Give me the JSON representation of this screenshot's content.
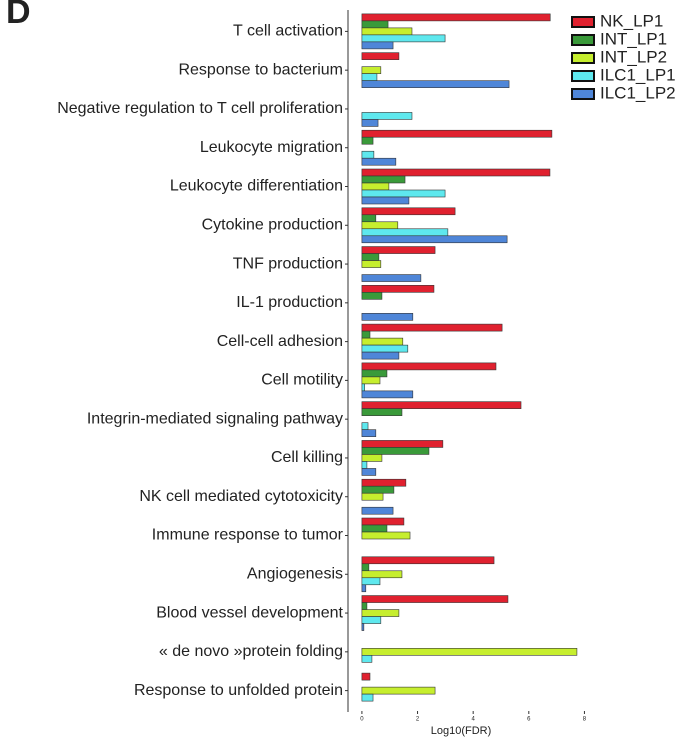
{
  "chart_data": {
    "type": "bar",
    "orientation": "horizontal",
    "panel_label": "D",
    "x_label": "Log10(FDR)",
    "categories": [
      "T cell activation",
      "Response to bacterium",
      "Negative regulation to T cell proliferation",
      "Leukocyte migration",
      "Leukocyte differentiation",
      "Cytokine production",
      "TNF production",
      "IL-1 production",
      "Cell-cell adhesion",
      "Cell motility",
      "Integrin-mediated signaling pathway",
      "Cell killing",
      "NK cell mediated cytotoxicity",
      "Immune response to tumor",
      "Angiogenesis",
      "Blood vessel development",
      "« de novo »protein folding",
      "Response to unfolded protein"
    ],
    "series": [
      {
        "name": "NK_LP1",
        "color": "#e0212f",
        "values": [
          6.77,
          1.33,
          0,
          6.83,
          6.76,
          3.35,
          2.63,
          2.59,
          5.04,
          4.82,
          5.72,
          2.91,
          1.58,
          1.51,
          4.75,
          5.25,
          0,
          0.29
        ]
      },
      {
        "name": "INT_LP1",
        "color": "#3a9a3a",
        "values": [
          0.94,
          0,
          0,
          0.4,
          1.55,
          0.5,
          0.61,
          0.72,
          0.29,
          0.9,
          1.44,
          2.41,
          1.15,
          0.9,
          0.25,
          0.18,
          0,
          0
        ]
      },
      {
        "name": "INT_LP2",
        "color": "#c6ee2e",
        "values": [
          1.8,
          0.68,
          0,
          0,
          0.97,
          1.29,
          0.68,
          0,
          1.47,
          0.65,
          0,
          0.72,
          0.76,
          1.73,
          1.44,
          1.33,
          7.73,
          2.63
        ]
      },
      {
        "name": "ILC1_LP1",
        "color": "#5ee8ee",
        "values": [
          2.99,
          0.54,
          1.8,
          0.43,
          2.99,
          3.09,
          0,
          0,
          1.65,
          0.1,
          0.22,
          0.18,
          0,
          0,
          0.65,
          0.68,
          0.36,
          0.4
        ]
      },
      {
        "name": "ILC1_LP2",
        "color": "#4f86d8",
        "values": [
          1.12,
          5.29,
          0.58,
          1.22,
          1.69,
          5.22,
          2.12,
          1.83,
          1.33,
          1.83,
          0.5,
          0.5,
          1.12,
          0,
          0.14,
          0.07,
          0,
          0
        ]
      }
    ],
    "xlim": [
      -0.5,
      8.2
    ],
    "xticks": [
      0,
      2,
      4,
      6,
      8
    ]
  }
}
